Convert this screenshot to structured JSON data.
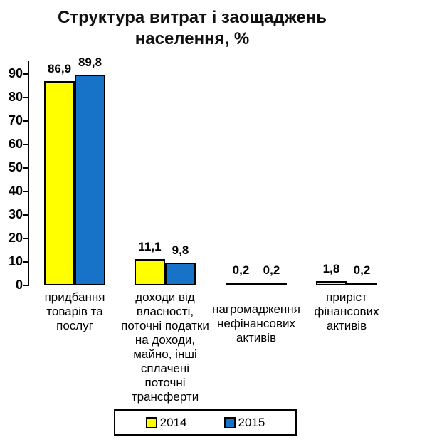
{
  "title": {
    "line1": "Структура витрат і заощаджень",
    "line2": "населення, %"
  },
  "chart_data": {
    "type": "bar",
    "title": "Структура витрат і заощаджень населення, %",
    "categories": [
      [
        "придбання",
        "товарів та",
        "послуг"
      ],
      [
        "доходи від",
        "власності,",
        "поточні податки",
        "на доходи,",
        "майно, інші",
        "сплачені",
        "поточні",
        "трансферти"
      ],
      [
        "нагромадження",
        "нефінансових",
        "активів"
      ],
      [
        "приріст",
        "фінансових",
        "активів"
      ]
    ],
    "series": [
      {
        "name": "2014",
        "color": "#FFFF00",
        "values": [
          86.9,
          11.1,
          0.2,
          1.8
        ]
      },
      {
        "name": "2015",
        "color": "#1673C8",
        "values": [
          89.8,
          9.8,
          0.2,
          0.2
        ]
      }
    ],
    "value_label_decimal_separator": ",",
    "xlabel": "",
    "ylabel": "",
    "ylim": [
      0,
      90
    ],
    "ytick_step": 10,
    "yticks": [
      0,
      10,
      20,
      30,
      40,
      50,
      60,
      70,
      80,
      90
    ],
    "grid": false,
    "legend_position": "bottom",
    "bar_border_color": "#000000"
  }
}
